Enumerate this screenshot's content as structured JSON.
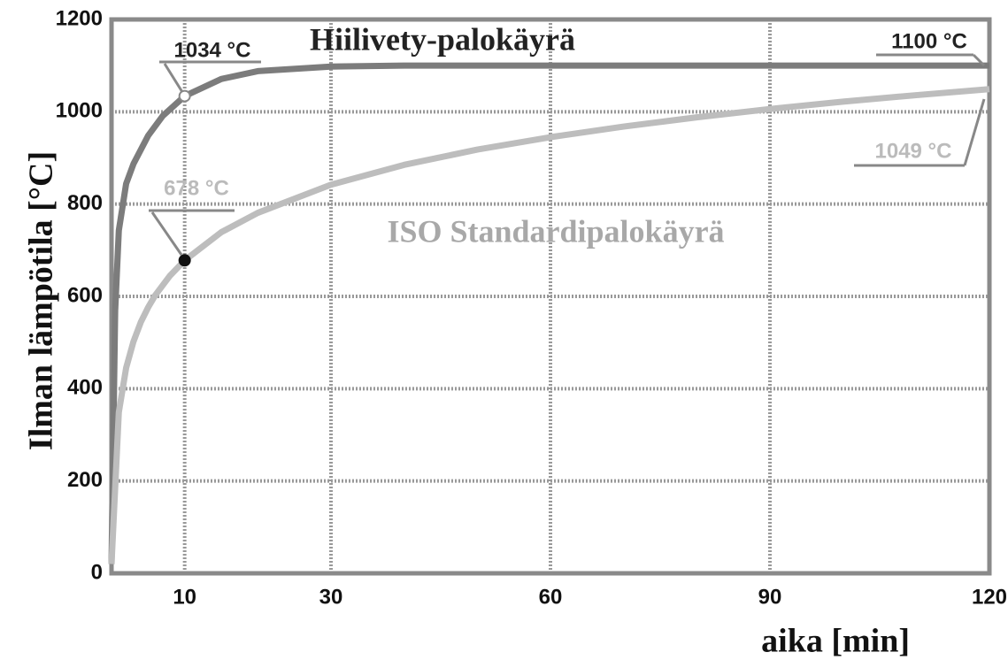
{
  "chart_data": {
    "type": "line",
    "y_label": "Ilman lämpötila [°C]",
    "x_label": "aika [min]",
    "xlim": [
      0,
      120
    ],
    "xticks": [
      10,
      30,
      60,
      90,
      120
    ],
    "ylim": [
      0,
      1200
    ],
    "yticks": [
      0,
      200,
      400,
      600,
      800,
      1000,
      1200
    ],
    "grid": true,
    "series": [
      {
        "name": "Hiilivety-palokäyrä",
        "color": "#7c7c7c",
        "x": [
          0,
          0.5,
          1,
          2,
          3,
          5,
          7,
          10,
          15,
          20,
          30,
          40,
          60,
          90,
          120
        ],
        "values": [
          20,
          569,
          743,
          844,
          887,
          948,
          991,
          1034,
          1071,
          1088,
          1098,
          1100,
          1100,
          1100,
          1100
        ]
      },
      {
        "name": "ISO Standardipalokäyrä",
        "color": "#bdbdbd",
        "x": [
          0,
          1,
          2,
          3,
          4,
          5,
          6,
          8,
          10,
          15,
          20,
          30,
          40,
          50,
          60,
          70,
          80,
          90,
          100,
          110,
          120
        ],
        "values": [
          20,
          349,
          445,
          502,
          544,
          576,
          603,
          645,
          678,
          739,
          781,
          842,
          885,
          918,
          945,
          968,
          988,
          1006,
          1022,
          1036,
          1049
        ]
      }
    ],
    "annotations": [
      {
        "text": "1034 °C",
        "x": 10,
        "y": 1034
      },
      {
        "text": "1100 °C",
        "x": 120,
        "y": 1100
      },
      {
        "text": "678 °C",
        "x": 10,
        "y": 678
      },
      {
        "text": "1049 °C",
        "x": 120,
        "y": 1049
      }
    ]
  }
}
